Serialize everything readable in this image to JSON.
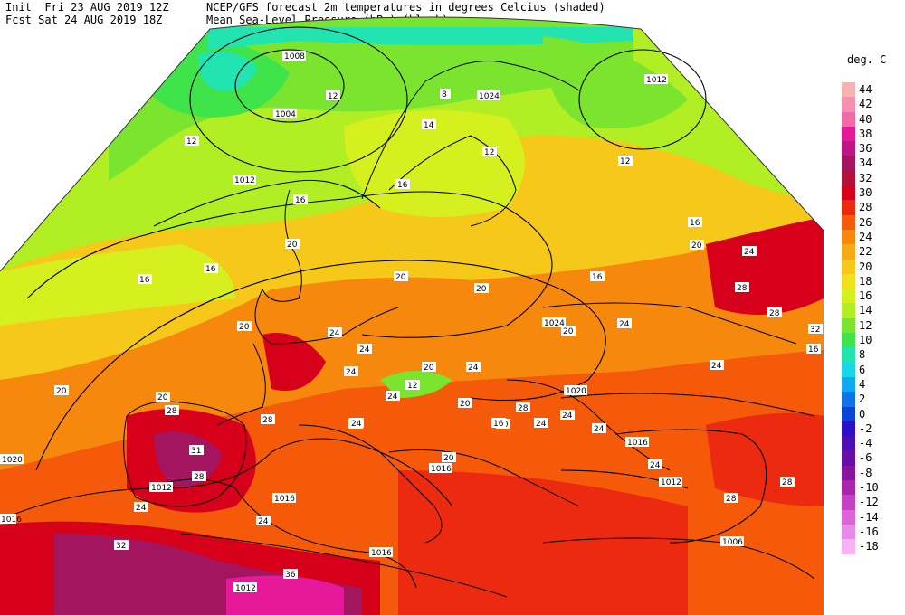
{
  "header": {
    "line1_left": "Init  Fri 23 AUG 2019 12Z",
    "line2_left": "Fcst Sat 24 AUG 2019 18Z",
    "line1_right": "NCEP/GFS forecast 2m temperatures in degrees Celcius (shaded)",
    "line2_right": "Mean Sea-Level Pressure (hPa) (black)."
  },
  "legend": {
    "title": "deg. C",
    "entries": [
      {
        "label": "44",
        "color": "#f7b2b2"
      },
      {
        "label": "42",
        "color": "#f590b0"
      },
      {
        "label": "40",
        "color": "#f06aa8"
      },
      {
        "label": "38",
        "color": "#e6199a"
      },
      {
        "label": "36",
        "color": "#c01583"
      },
      {
        "label": "34",
        "color": "#a41560"
      },
      {
        "label": "32",
        "color": "#b0123a"
      },
      {
        "label": "30",
        "color": "#d6001a"
      },
      {
        "label": "28",
        "color": "#ec2a10"
      },
      {
        "label": "26",
        "color": "#f45a0a"
      },
      {
        "label": "24",
        "color": "#f6880e"
      },
      {
        "label": "22",
        "color": "#f8aa14"
      },
      {
        "label": "20",
        "color": "#f6c81a"
      },
      {
        "label": "18",
        "color": "#efe21c"
      },
      {
        "label": "16",
        "color": "#d6ef1e"
      },
      {
        "label": "14",
        "color": "#b2ee24"
      },
      {
        "label": "12",
        "color": "#7ae42e"
      },
      {
        "label": "10",
        "color": "#3ee44a"
      },
      {
        "label": "8",
        "color": "#22e4b0"
      },
      {
        "label": "6",
        "color": "#16d8e8"
      },
      {
        "label": "4",
        "color": "#10a8f0"
      },
      {
        "label": "2",
        "color": "#0c74e6"
      },
      {
        "label": "0",
        "color": "#0a44d8"
      },
      {
        "label": "-2",
        "color": "#2a10c8"
      },
      {
        "label": "-4",
        "color": "#4e0cb4"
      },
      {
        "label": "-6",
        "color": "#6a0ca6"
      },
      {
        "label": "-8",
        "color": "#8a129e"
      },
      {
        "label": "-10",
        "color": "#aa24ac"
      },
      {
        "label": "-12",
        "color": "#c640c6"
      },
      {
        "label": "-14",
        "color": "#da64d8"
      },
      {
        "label": "-16",
        "color": "#ea8ae8"
      },
      {
        "label": "-18",
        "color": "#f6b2f2"
      }
    ]
  },
  "map": {
    "isobar_labels": [
      "1008",
      "1004",
      "1012",
      "1024",
      "1012",
      "1012",
      "1024",
      "1020",
      "1020",
      "1016",
      "1016",
      "1012",
      "1016",
      "1012",
      "1006",
      "1012",
      "1016",
      "1016"
    ],
    "temp_labels": [
      "8",
      "12",
      "12",
      "14",
      "12",
      "12",
      "16",
      "16",
      "20",
      "20",
      "16",
      "16",
      "20",
      "20",
      "24",
      "24",
      "24",
      "24",
      "20",
      "24",
      "28",
      "28",
      "32",
      "16",
      "20",
      "16",
      "20",
      "24",
      "28",
      "31",
      "28",
      "24",
      "28",
      "32",
      "36",
      "24",
      "24",
      "20",
      "24",
      "20",
      "24",
      "28",
      "28",
      "24",
      "24",
      "28",
      "24",
      "24",
      "28",
      "16",
      "24",
      "12",
      "24",
      "20",
      "20",
      "16",
      "16",
      "16",
      "20"
    ]
  }
}
